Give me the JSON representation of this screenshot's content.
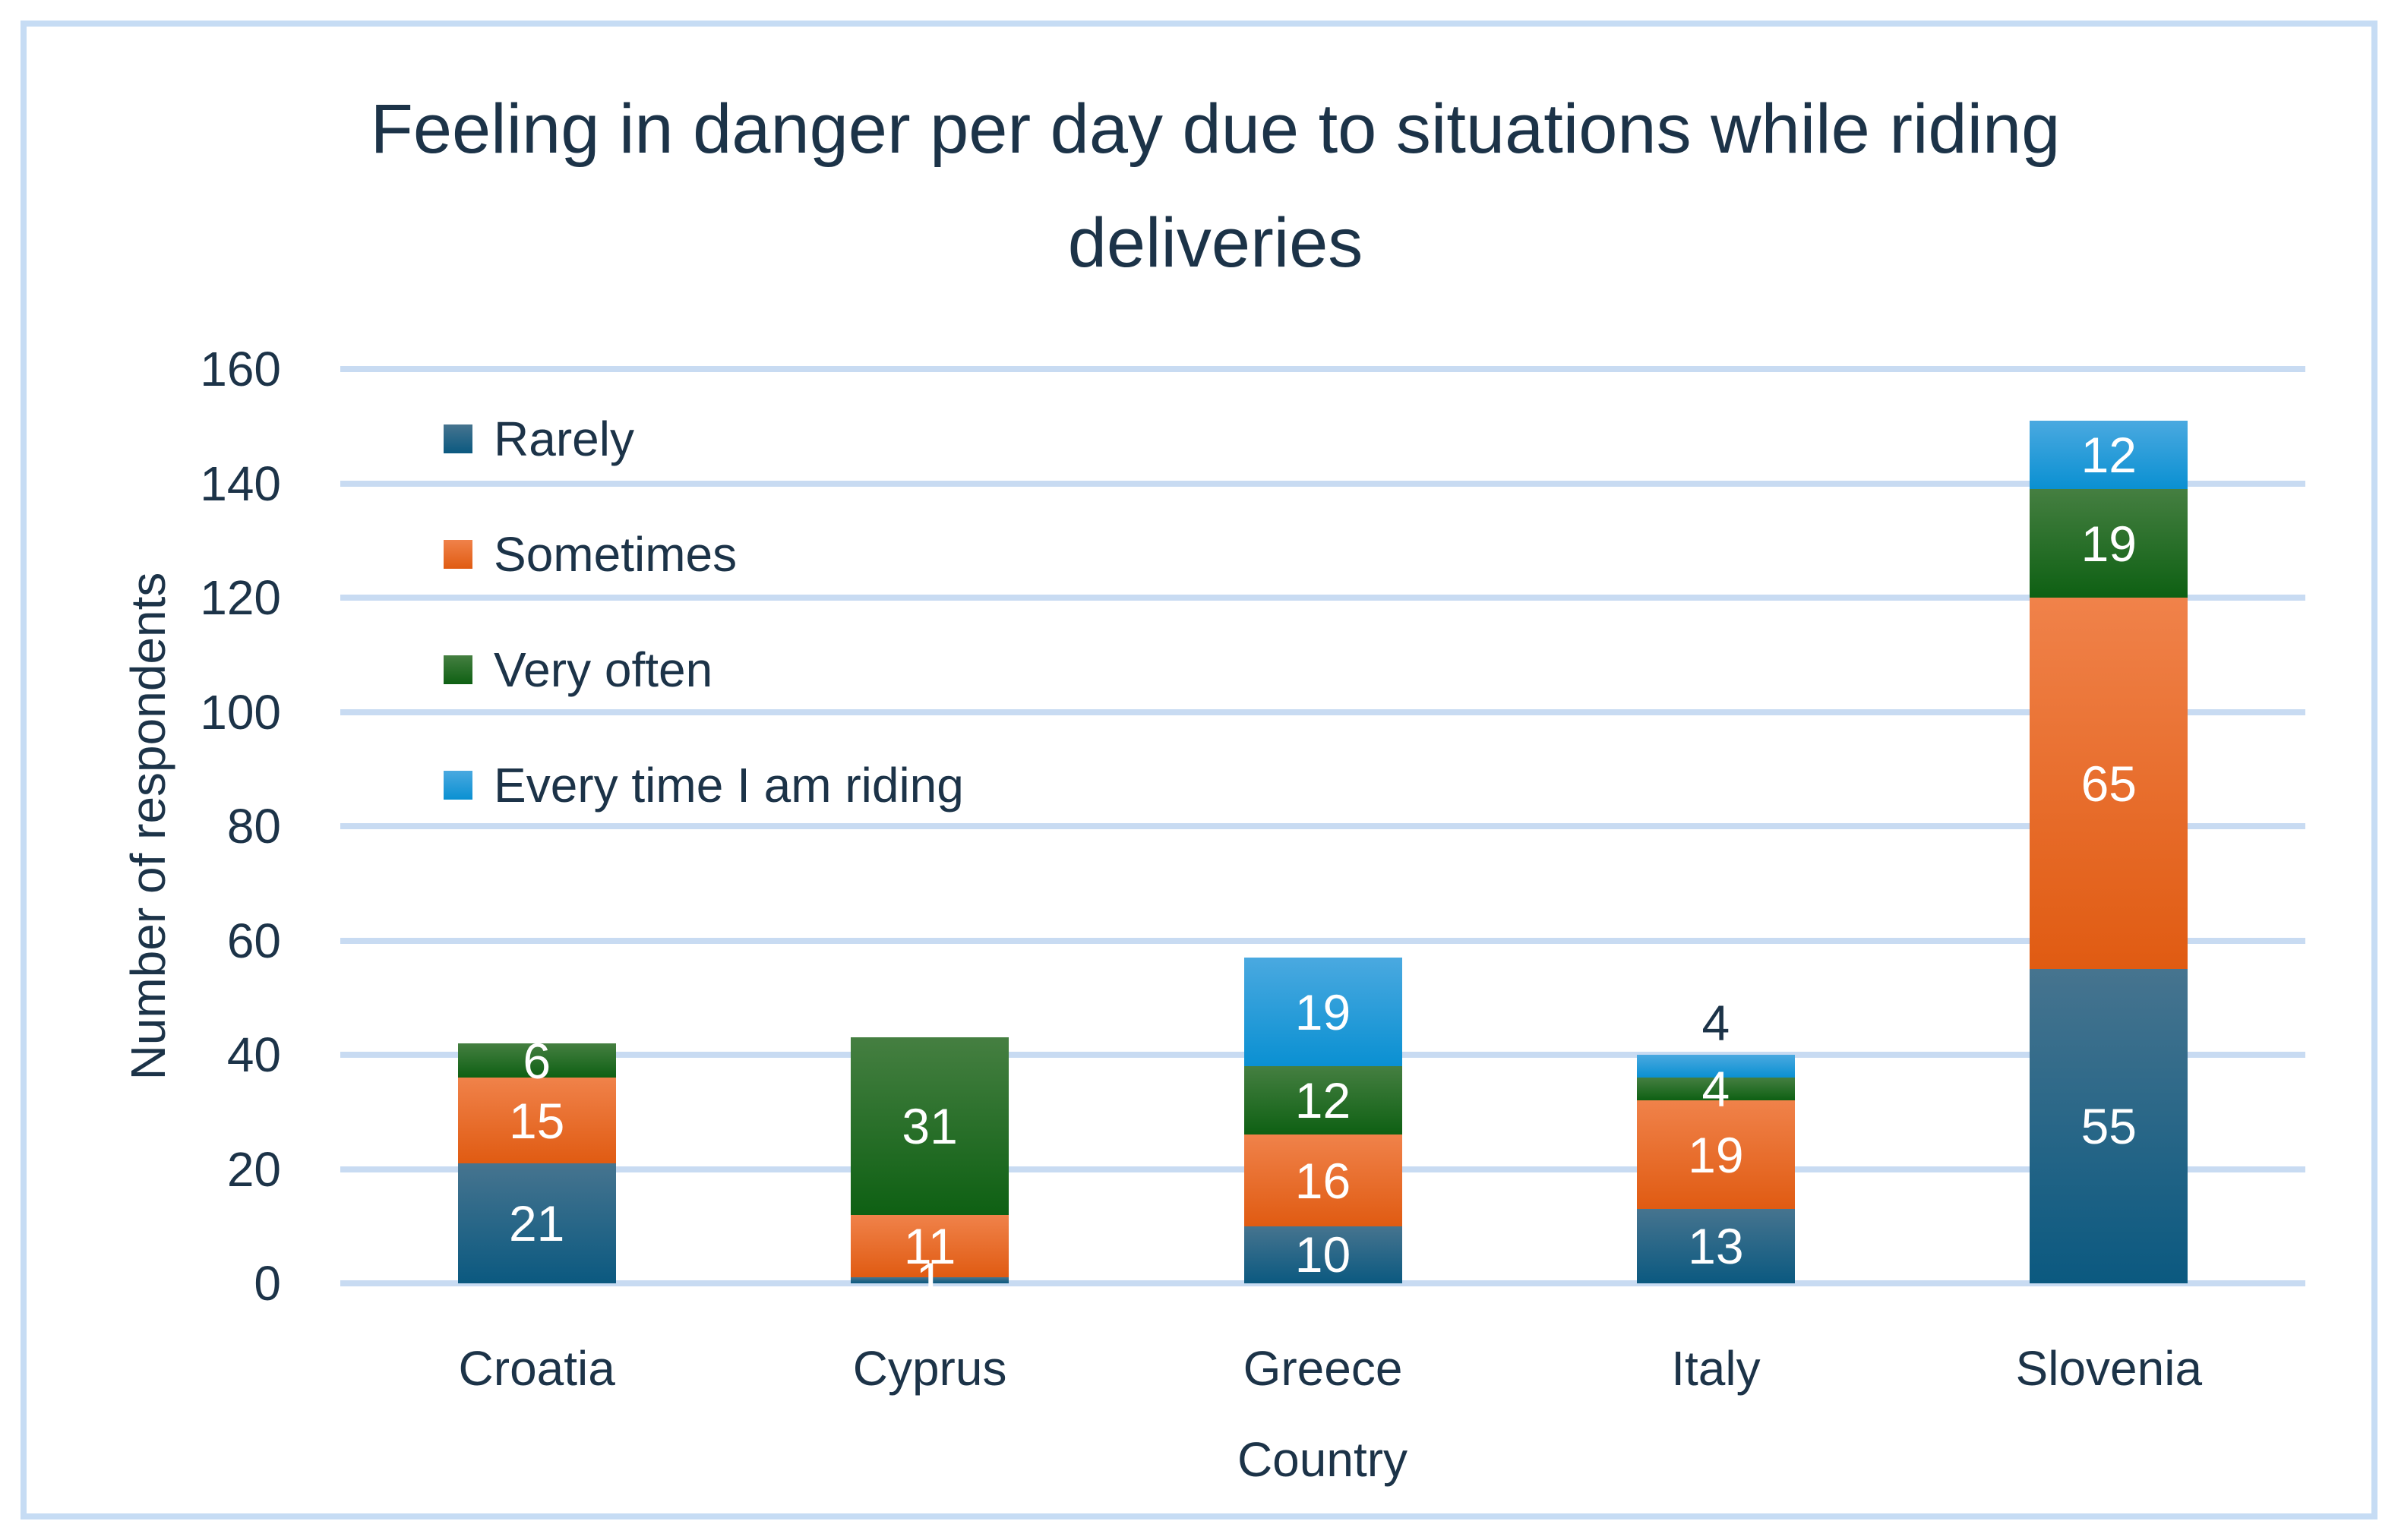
{
  "style": {
    "text_color": "#1C3348",
    "gridline_color": "#C8DBF2",
    "figure_border_color": "#C6DCF4",
    "background_color": "#FFFFFF",
    "bar_label_color": "#FFFFFF"
  },
  "chart_data": {
    "type": "bar",
    "subtype": "stacked",
    "title": "Feeling in danger per day due to situations while riding deliveries",
    "xlabel": "Country",
    "ylabel": "Number of respondents",
    "ylim": [
      0,
      160
    ],
    "ytick_step": 20,
    "yticks": [
      0,
      20,
      40,
      60,
      80,
      100,
      120,
      140,
      160
    ],
    "grid": true,
    "legend_position": "upper-left-inside",
    "categories": [
      "Croatia",
      "Cyprus",
      "Greece",
      "Italy",
      "Slovenia"
    ],
    "series": [
      {
        "name": "Rarely",
        "color_top": "#46748F",
        "color_bottom": "#0B5980",
        "values": [
          21,
          1,
          10,
          13,
          55
        ]
      },
      {
        "name": "Sometimes",
        "color_top": "#F0824A",
        "color_bottom": "#E05B12",
        "values": [
          15,
          11,
          16,
          19,
          65
        ]
      },
      {
        "name": "Very often",
        "color_top": "#457F41",
        "color_bottom": "#0E6013",
        "values": [
          6,
          31,
          12,
          4,
          19
        ]
      },
      {
        "name": "Every time I am riding",
        "color_top": "#4AA9E0",
        "color_bottom": "#0A90D2",
        "values": [
          0,
          0,
          19,
          4,
          12
        ]
      }
    ]
  }
}
